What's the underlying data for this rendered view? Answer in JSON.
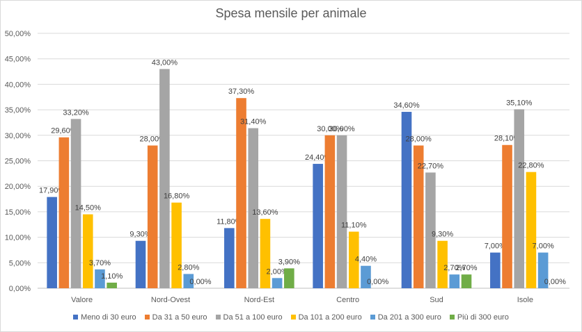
{
  "chart_data": {
    "type": "bar",
    "title": "Spesa mensile per animale",
    "categories": [
      "Valore",
      "Nord-Ovest",
      "Nord-Est",
      "Centro",
      "Sud",
      "Isole"
    ],
    "ylim": [
      0,
      50
    ],
    "yticks": [
      0,
      5,
      10,
      15,
      20,
      25,
      30,
      35,
      40,
      45,
      50
    ],
    "ytick_labels": [
      "0,00%",
      "5,00%",
      "10,00%",
      "15,00%",
      "20,00%",
      "25,00%",
      "30,00%",
      "35,00%",
      "40,00%",
      "45,00%",
      "50,00%"
    ],
    "grid": true,
    "legend_position": "bottom",
    "series": [
      {
        "name": "Meno di 30 euro",
        "color": "#4472c4",
        "values": [
          17.9,
          9.3,
          11.8,
          24.4,
          34.6,
          7.0
        ],
        "labels": [
          "17,90%",
          "9,30%",
          "11,80%",
          "24,40%",
          "34,60%",
          "7,00%"
        ]
      },
      {
        "name": "Da 31 a 50 euro",
        "color": "#ed7d31",
        "values": [
          29.6,
          28.0,
          37.3,
          30.0,
          28.0,
          28.1
        ],
        "labels": [
          "29,60%",
          "28,00%",
          "37,30%",
          "30,00%",
          "28,00%",
          "28,10%"
        ]
      },
      {
        "name": "Da 51 a 100 euro",
        "color": "#a5a5a5",
        "values": [
          33.2,
          43.0,
          31.4,
          30.0,
          22.7,
          35.1
        ],
        "labels": [
          "33,20%",
          "43,00%",
          "31,40%",
          "30,00%",
          "22,70%",
          "35,10%"
        ]
      },
      {
        "name": "Da 101 a 200 euro",
        "color": "#ffc000",
        "values": [
          14.5,
          16.8,
          13.6,
          11.1,
          9.3,
          22.8
        ],
        "labels": [
          "14,50%",
          "16,80%",
          "13,60%",
          "11,10%",
          "9,30%",
          "22,80%"
        ]
      },
      {
        "name": "Da 201 a 300 euro",
        "color": "#5b9bd5",
        "values": [
          3.7,
          2.8,
          2.0,
          4.4,
          2.7,
          7.0
        ],
        "labels": [
          "3,70%",
          "2,80%",
          "2,00%",
          "4,40%",
          "2,70%",
          "7,00%"
        ]
      },
      {
        "name": "Più di 300 euro",
        "color": "#70ad47",
        "values": [
          1.1,
          0.0,
          3.9,
          0.0,
          2.7,
          0.0
        ],
        "labels": [
          "1,10%",
          "0,00%",
          "3,90%",
          "0,00%",
          "2,70%",
          "0,00%"
        ]
      }
    ]
  }
}
